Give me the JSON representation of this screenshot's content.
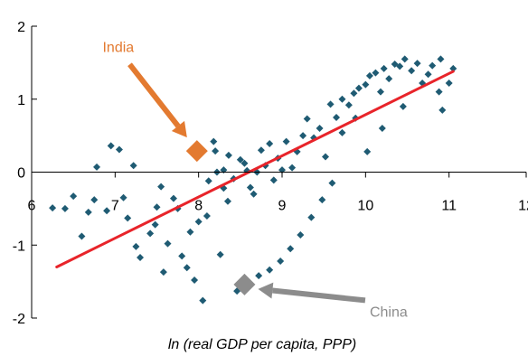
{
  "chart_data": {
    "type": "scatter",
    "title": "",
    "xlabel": "ln (real GDP per capita, PPP)",
    "ylabel": "",
    "xlim": [
      6,
      12
    ],
    "ylim": [
      -2,
      2
    ],
    "xticks": [
      6,
      7,
      8,
      9,
      10,
      11,
      12
    ],
    "yticks": [
      -2,
      -1,
      0,
      1,
      2
    ],
    "x_tick_labels": [
      "6",
      "7",
      "8",
      "9",
      "10",
      "11",
      "12"
    ],
    "y_tick_labels": [
      "-2",
      "-1",
      "0",
      "1",
      "2"
    ],
    "grid": false,
    "legend": "none",
    "colors": {
      "points": "#1f5b73",
      "trend": "#e8242a",
      "india": "#e37a30",
      "china": "#8c8c8c",
      "axis": "#000000"
    },
    "series": [
      {
        "points": [
          [
            6.25,
            -0.49
          ],
          [
            6.4,
            -0.5
          ],
          [
            6.5,
            -0.33
          ],
          [
            6.6,
            -0.88
          ],
          [
            6.68,
            -0.55
          ],
          [
            6.75,
            -0.38
          ],
          [
            6.78,
            0.07
          ],
          [
            6.9,
            -0.53
          ],
          [
            6.95,
            0.36
          ],
          [
            7.05,
            0.31
          ],
          [
            7.1,
            -0.35
          ],
          [
            7.15,
            -0.63
          ],
          [
            7.22,
            0.09
          ],
          [
            7.25,
            -1.02
          ],
          [
            7.3,
            -1.17
          ],
          [
            7.42,
            -0.84
          ],
          [
            7.48,
            -0.72
          ],
          [
            7.5,
            -0.48
          ],
          [
            7.55,
            -0.2
          ],
          [
            7.58,
            -1.37
          ],
          [
            7.63,
            -0.98
          ],
          [
            7.7,
            -0.36
          ],
          [
            7.75,
            -0.5
          ],
          [
            7.8,
            -1.15
          ],
          [
            7.86,
            -1.31
          ],
          [
            7.9,
            -0.82
          ],
          [
            7.95,
            -1.48
          ],
          [
            8.0,
            -0.68
          ],
          [
            8.05,
            -1.76
          ],
          [
            8.1,
            -0.6
          ],
          [
            8.12,
            -0.12
          ],
          [
            8.18,
            0.42
          ],
          [
            8.2,
            0.29
          ],
          [
            8.22,
            0.0
          ],
          [
            8.26,
            -1.13
          ],
          [
            8.3,
            -0.22
          ],
          [
            8.35,
            -0.4
          ],
          [
            8.3,
            0.03
          ],
          [
            8.36,
            0.23
          ],
          [
            8.42,
            -0.09
          ],
          [
            8.5,
            0.17
          ],
          [
            8.55,
            0.12
          ],
          [
            8.58,
            0.02
          ],
          [
            8.62,
            -0.21
          ],
          [
            8.66,
            -0.3
          ],
          [
            8.7,
            0.0
          ],
          [
            8.75,
            0.3
          ],
          [
            8.8,
            0.09
          ],
          [
            8.85,
            0.39
          ],
          [
            8.9,
            -0.11
          ],
          [
            8.95,
            0.19
          ],
          [
            9.0,
            0.03
          ],
          [
            9.05,
            0.42
          ],
          [
            9.12,
            0.06
          ],
          [
            9.18,
            0.28
          ],
          [
            9.25,
            0.5
          ],
          [
            9.3,
            0.73
          ],
          [
            9.38,
            0.47
          ],
          [
            9.45,
            0.6
          ],
          [
            9.52,
            0.21
          ],
          [
            9.58,
            0.93
          ],
          [
            9.65,
            0.75
          ],
          [
            9.72,
            1.0
          ],
          [
            9.8,
            0.92
          ],
          [
            9.86,
            1.08
          ],
          [
            9.92,
            1.15
          ],
          [
            10.0,
            1.2
          ],
          [
            10.05,
            1.32
          ],
          [
            10.12,
            1.36
          ],
          [
            10.18,
            1.1
          ],
          [
            10.22,
            1.42
          ],
          [
            10.28,
            1.28
          ],
          [
            10.35,
            1.48
          ],
          [
            10.41,
            1.45
          ],
          [
            10.47,
            1.55
          ],
          [
            10.55,
            1.39
          ],
          [
            10.62,
            1.49
          ],
          [
            10.68,
            1.22
          ],
          [
            10.75,
            1.34
          ],
          [
            10.8,
            1.46
          ],
          [
            10.88,
            1.1
          ],
          [
            10.92,
            0.85
          ],
          [
            11.0,
            1.22
          ],
          [
            11.05,
            1.42
          ],
          [
            10.9,
            1.55
          ],
          [
            10.45,
            0.9
          ],
          [
            10.2,
            0.6
          ],
          [
            10.02,
            0.28
          ],
          [
            9.88,
            0.74
          ],
          [
            9.72,
            0.54
          ],
          [
            9.6,
            -0.15
          ],
          [
            9.48,
            -0.38
          ],
          [
            9.35,
            -0.62
          ],
          [
            9.22,
            -0.86
          ],
          [
            9.1,
            -1.05
          ],
          [
            8.98,
            -1.22
          ],
          [
            8.85,
            -1.34
          ],
          [
            8.72,
            -1.42
          ],
          [
            8.58,
            -1.52
          ],
          [
            8.46,
            -1.63
          ]
        ]
      }
    ],
    "trend_line": {
      "x": [
        6.3,
        11.05
      ],
      "y": [
        -1.3,
        1.38
      ]
    },
    "annotations": [
      {
        "label": "India",
        "point": [
          7.98,
          0.29
        ],
        "text_at": [
          6.85,
          1.65
        ]
      },
      {
        "label": "China",
        "point": [
          8.55,
          -1.54
        ],
        "text_at": [
          10.05,
          -1.98
        ]
      }
    ]
  }
}
